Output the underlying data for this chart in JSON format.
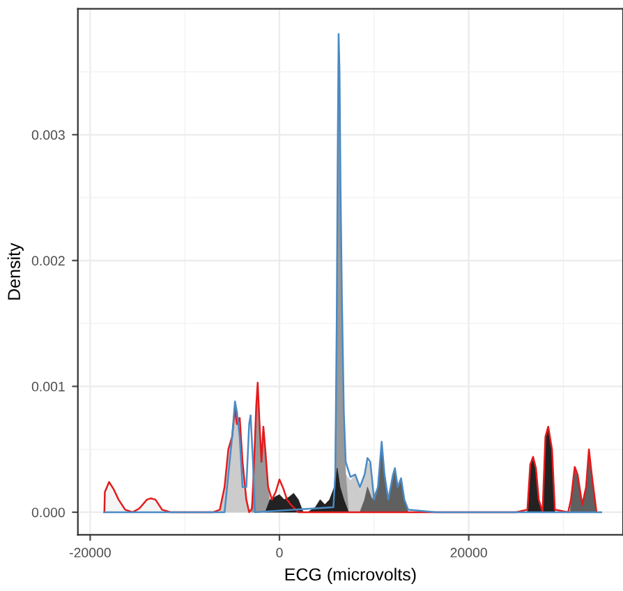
{
  "chart_data": {
    "type": "area",
    "xlabel": "ECG (microvolts)",
    "ylabel": "Density",
    "xlim": [
      -21300,
      36300
    ],
    "ylim": [
      -0.00018,
      0.004
    ],
    "xticks": [
      -20000,
      0,
      20000
    ],
    "yticks": [
      {
        "value": 0,
        "label": "0.000"
      },
      {
        "value": 0.001,
        "label": "0.001"
      },
      {
        "value": 0.002,
        "label": "0.002"
      },
      {
        "value": 0.003,
        "label": "0.003"
      }
    ],
    "grid": true,
    "series": [
      {
        "color": "#f4f4f4",
        "x": [
          -18500,
          -18450,
          -18000,
          -17500,
          -17000,
          -16300,
          -15500,
          -14800,
          -14000,
          -13600,
          -13100,
          -12400,
          -11500
        ],
        "values": [
          0,
          0.00016,
          0.00024,
          0.00018,
          0.0001,
          2e-05,
          0,
          3e-05,
          0.0001,
          0.00011,
          0.0001,
          2e-05,
          0
        ]
      },
      {
        "color": "#cccccc",
        "x": [
          -6300,
          -5800,
          -5400,
          -5000,
          -4700,
          -4500,
          -4200,
          -3900,
          -3500,
          -3200
        ],
        "values": [
          0,
          0.0002,
          0.0005,
          0.0006,
          0.0008,
          0.0007,
          0.0007,
          0.0004,
          0.0001,
          0
        ]
      },
      {
        "color": "#cccccc",
        "x": [
          6800,
          7000,
          7500,
          8000,
          8500,
          9000,
          9300,
          9600,
          10000
        ],
        "values": [
          0,
          0.0003,
          0.00025,
          0.0003,
          0.00018,
          0.0003,
          0.0004,
          0.00038,
          0
        ]
      },
      {
        "color": "#999999",
        "x": [
          -3000,
          -2700,
          -2450,
          -2300,
          -2100,
          -1900,
          -1700,
          -1500,
          -1200,
          -900
        ],
        "values": [
          0,
          0.0003,
          0.0008,
          0.001,
          0.0007,
          0.0004,
          0.00065,
          0.0005,
          0.0002,
          0
        ]
      },
      {
        "color": "#999999",
        "x": [
          5800,
          6050,
          6150,
          6250,
          6350,
          6450,
          6600,
          6800,
          7000,
          7300
        ],
        "values": [
          0,
          0.0014,
          0.0027,
          0.0035,
          0.0034,
          0.0025,
          0.0016,
          0.0008,
          0.0003,
          0
        ]
      },
      {
        "color": "#222222",
        "x": [
          -1500,
          -1000,
          -500,
          0,
          500,
          1000,
          1500,
          2000,
          2500
        ],
        "values": [
          0,
          0.0001,
          0.00012,
          0.00014,
          0.0001,
          0.00012,
          0.00015,
          0.0001,
          0
        ]
      },
      {
        "color": "#222222",
        "x": [
          3000,
          3800,
          4300,
          4800,
          5300,
          5800,
          6100,
          6400,
          6800,
          7300
        ],
        "values": [
          0,
          4e-05,
          0.0001,
          6e-05,
          0.0001,
          0.0002,
          0.00035,
          0.0002,
          0.0001,
          0
        ]
      },
      {
        "color": "#606060",
        "x": [
          8500,
          9000,
          9300,
          9800,
          10400,
          10800,
          11100,
          11500,
          12000,
          12200,
          12500,
          12850,
          13200,
          13600
        ],
        "values": [
          0,
          0.0001,
          0.0002,
          0.0001,
          0.0002,
          0.00054,
          0.0003,
          0.0001,
          0.00028,
          0.00033,
          0.0002,
          0.00025,
          0.0001,
          0
        ]
      },
      {
        "color": "#222222",
        "x": [
          26200,
          26500,
          26800,
          27100,
          27400,
          27800,
          28100,
          28400,
          28800,
          29100
        ],
        "values": [
          0,
          0.00036,
          0.00042,
          0.00033,
          0.0001,
          0,
          0.00058,
          0.00065,
          0.00048,
          0
        ]
      },
      {
        "color": "#606060",
        "x": [
          30700,
          31200,
          31500,
          32000,
          32400,
          32700,
          33000,
          33500
        ],
        "values": [
          0,
          0.00034,
          0.00028,
          6e-05,
          0.0002,
          0.00048,
          0.0003,
          0
        ]
      },
      {
        "type": "line",
        "color": "#e41a1c",
        "x": [
          -18500,
          -18450,
          -18000,
          -17500,
          -17000,
          -16300,
          -15500,
          -14800,
          -14000,
          -13600,
          -13100,
          -12400,
          -11500,
          -7000,
          -6300,
          -5800,
          -5400,
          -5000,
          -4700,
          -4500,
          -4200,
          -3900,
          -3500,
          -3200,
          -2900,
          -2700,
          -2450,
          -2300,
          -2100,
          -1900,
          -1700,
          -1500,
          -1200,
          -800,
          -400,
          0,
          400,
          800,
          1200,
          2000,
          25000,
          26200,
          26500,
          26800,
          27100,
          27400,
          27800,
          28100,
          28400,
          28800,
          29100,
          30500,
          30800,
          31200,
          31500,
          32000,
          32400,
          32700,
          33000,
          33500
        ],
        "values": [
          0,
          0.00016,
          0.00024,
          0.00018,
          0.0001,
          2e-05,
          0,
          3e-05,
          0.0001,
          0.00011,
          0.0001,
          2e-05,
          0,
          0,
          2e-05,
          0.0002,
          0.0005,
          0.0006,
          0.00082,
          0.0007,
          0.00075,
          0.0004,
          0.0001,
          0,
          3e-05,
          0.00035,
          0.00085,
          0.00103,
          0.0007,
          0.0004,
          0.00068,
          0.0005,
          0.0002,
          0.0001,
          0.00016,
          0.00026,
          0.00019,
          0.0001,
          6e-05,
          0,
          0,
          2e-05,
          0.00038,
          0.00044,
          0.00035,
          0.0001,
          0,
          0.0006,
          0.00068,
          0.0005,
          2e-05,
          0,
          0.0001,
          0.00036,
          0.0003,
          6e-05,
          0.0002,
          0.0005,
          0.0003,
          0
        ]
      },
      {
        "type": "line",
        "color": "#4a8ac4",
        "x": [
          -18500,
          -5800,
          -5400,
          -5000,
          -4700,
          -4500,
          -4200,
          -3900,
          -3500,
          -3200,
          -3050,
          -2800,
          -2600,
          5700,
          5900,
          6050,
          6150,
          6250,
          6350,
          6450,
          6600,
          6800,
          7000,
          7500,
          8000,
          8500,
          9000,
          9300,
          9600,
          10000,
          10400,
          10800,
          11100,
          11500,
          12000,
          12200,
          12500,
          12850,
          13200,
          13600,
          16500,
          34000
        ],
        "values": [
          0,
          0,
          0.0003,
          0.0006,
          0.00088,
          0.0008,
          0.0006,
          0.0002,
          0.0002,
          0.0007,
          0.00077,
          0.0004,
          0,
          4e-05,
          0.0003,
          0.0015,
          0.0028,
          0.0038,
          0.0035,
          0.0026,
          0.0017,
          0.0008,
          0.0004,
          0.00028,
          0.0003,
          0.0002,
          0.0003,
          0.00043,
          0.0004,
          0.0001,
          0.0002,
          0.00056,
          0.0003,
          0.0001,
          0.0003,
          0.00035,
          0.0002,
          0.00027,
          0.0001,
          2e-05,
          0,
          0
        ]
      }
    ]
  }
}
